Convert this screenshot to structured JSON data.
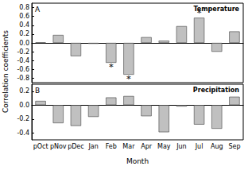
{
  "chart_data": [
    {
      "type": "bar",
      "panel": "A",
      "title": "Temperature",
      "ylabel": "Correlation coefficients",
      "categories": [
        "pOct",
        "pNov",
        "pDec",
        "Jan",
        "Feb",
        "Mar",
        "Apr",
        "May",
        "Jun",
        "Jul",
        "Aug",
        "Sep"
      ],
      "values": [
        0.01,
        0.18,
        -0.3,
        -0.02,
        -0.45,
        -0.72,
        0.13,
        0.05,
        0.38,
        0.57,
        -0.2,
        0.26
      ],
      "color": "#c0c0c0",
      "ylim": [
        -0.9,
        0.9
      ],
      "yticks": [
        -0.8,
        -0.6,
        -0.4,
        -0.2,
        {
          "value": 0,
          "label": "0.0"
        },
        0.2,
        0.4,
        0.6,
        0.8
      ],
      "annotations": [
        {
          "category": "Feb",
          "text": "*"
        },
        {
          "category": "Mar",
          "text": "*"
        },
        {
          "category": "Jul",
          "text": "*"
        }
      ],
      "tick_labels": "y"
    },
    {
      "type": "bar",
      "panel": "B",
      "title": "Precipitation",
      "xlabel": "Month",
      "categories": [
        "pOct",
        "pNov",
        "pDec",
        "Jan",
        "Feb",
        "Mar",
        "Apr",
        "May",
        "Jun",
        "Jul",
        "Aug",
        "Sep"
      ],
      "values": [
        0.06,
        -0.26,
        -0.3,
        -0.17,
        0.11,
        0.13,
        -0.16,
        -0.39,
        -0.02,
        -0.28,
        -0.34,
        0.12
      ],
      "color": "#c0c0c0",
      "ylim": [
        -0.5,
        0.3
      ],
      "yticks": [
        -0.4,
        -0.2,
        {
          "value": 0,
          "label": "0.0"
        },
        0.2
      ]
    }
  ]
}
